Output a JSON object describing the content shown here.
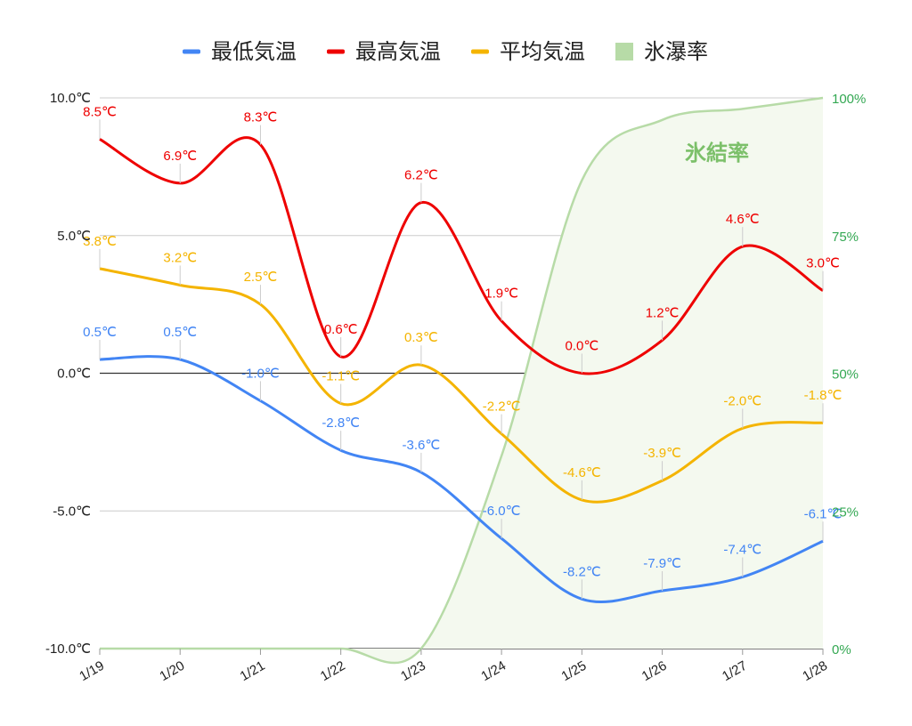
{
  "chart_data": {
    "type": "line",
    "categories": [
      "1/19",
      "1/20",
      "1/21",
      "1/22",
      "1/23",
      "1/24",
      "1/25",
      "1/26",
      "1/27",
      "1/28"
    ],
    "series": [
      {
        "name": "最低気温",
        "color": "#4285f4",
        "axis": "left",
        "values": [
          0.5,
          0.5,
          -1.0,
          -2.8,
          -3.6,
          -6.0,
          -8.2,
          -7.9,
          -7.4,
          -6.1
        ],
        "labels": [
          "0.5℃",
          "0.5℃",
          "-1.0℃",
          "-2.8℃",
          "-3.6℃",
          "-6.0℃",
          "-8.2℃",
          "-7.9℃",
          "-7.4℃",
          "-6.1℃"
        ]
      },
      {
        "name": "最高気温",
        "color": "#ee0000",
        "axis": "left",
        "values": [
          8.5,
          6.9,
          8.3,
          0.6,
          6.2,
          1.9,
          0.0,
          1.2,
          4.6,
          3.0
        ],
        "labels": [
          "8.5℃",
          "6.9℃",
          "8.3℃",
          "0.6℃",
          "6.2℃",
          "1.9℃",
          "0.0℃",
          "1.2℃",
          "4.6℃",
          "3.0℃"
        ]
      },
      {
        "name": "平均気温",
        "color": "#f4b400",
        "axis": "left",
        "values": [
          3.8,
          3.2,
          2.5,
          -1.1,
          0.3,
          -2.2,
          -4.6,
          -3.9,
          -2.0,
          -1.8
        ],
        "labels": [
          "3.8℃",
          "3.2℃",
          "2.5℃",
          "-1.1℃",
          "0.3℃",
          "-2.2℃",
          "-4.6℃",
          "-3.9℃",
          "-2.0℃",
          "-1.8℃"
        ]
      },
      {
        "name": "氷瀑率",
        "type": "area",
        "color": "#b7dba7",
        "fill": "#f4f9ef",
        "axis": "right",
        "values": [
          0,
          0,
          0,
          0,
          0,
          35,
          85,
          96,
          98,
          100
        ]
      }
    ],
    "y_left": {
      "ticks": [
        "10.0℃",
        "5.0℃",
        "0.0℃",
        "-5.0℃",
        "-10.0℃"
      ],
      "values": [
        10,
        5,
        0,
        -5,
        -10
      ],
      "ylim": [
        -10,
        10
      ]
    },
    "y_right": {
      "ticks": [
        "100%",
        "75%",
        "50%",
        "25%",
        "0%"
      ],
      "values": [
        100,
        75,
        50,
        25,
        0
      ],
      "ylim": [
        0,
        100
      ],
      "color": "#34a853"
    },
    "annotation": {
      "text": "氷結率",
      "color": "#7cc06a"
    },
    "legend_position": "top",
    "grid": true
  }
}
